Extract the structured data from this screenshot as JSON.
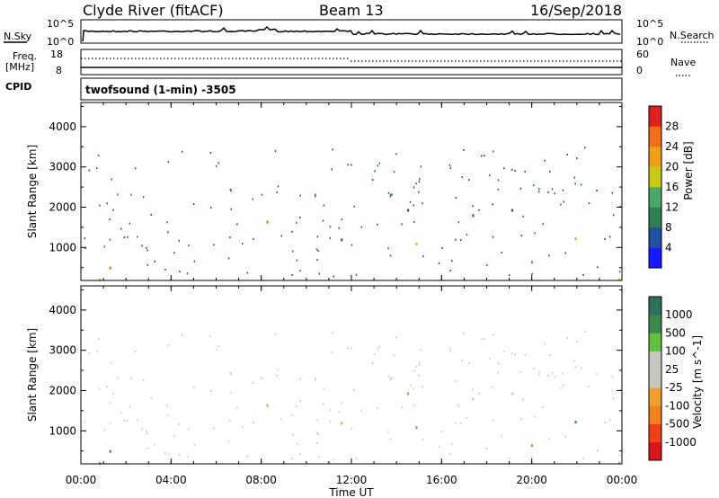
{
  "header": {
    "station": "Clyde River (fitACF)",
    "beam": "Beam 13",
    "date": "16/Sep/2018"
  },
  "top_panels": {
    "nsky_label": "N.Sky",
    "nsearch_label": "N.Search",
    "nsky_ticks": [
      "10^5",
      "10^0"
    ],
    "nsearch_ticks": [
      "10^5",
      "10^0"
    ],
    "freq_label_1": "Freq.",
    "freq_label_2": "[MHz]",
    "freq_ticks": [
      "18",
      "8"
    ],
    "nave_label": "Nave",
    "nave_ticks": [
      "60",
      "0"
    ],
    "cpid_label": "CPID",
    "cpid_text": "twofsound (1-min) -3505"
  },
  "colors": {
    "power": [
      "#1818ff",
      "#2050a0",
      "#2f7f55",
      "#48a868",
      "#c8c818",
      "#f0a018",
      "#f07018",
      "#e02020"
    ],
    "velocity": [
      "#d81818",
      "#f04018",
      "#f08020",
      "#f0a030",
      "#c8c8c0",
      "#c8c8c0",
      "#60c040",
      "#3a8a50",
      "#2f6e60",
      "#2030c0"
    ]
  },
  "chart_data": [
    {
      "type": "heatmap",
      "ylabel": "Slant Range [km]",
      "ylim": [
        180,
        4600
      ],
      "x_ticks": [
        "00:00",
        "04:00",
        "08:00",
        "12:00",
        "16:00",
        "20:00",
        "00:00"
      ],
      "y_ticks": [
        1000,
        2000,
        3000,
        4000
      ],
      "colorbar": {
        "label": "Power [dB]",
        "ticks": [
          "4",
          "8",
          "12",
          "16",
          "20",
          "24",
          "28"
        ]
      }
    },
    {
      "type": "heatmap",
      "xlabel": "Time UT",
      "ylabel": "Slant Range [km]",
      "ylim": [
        180,
        4600
      ],
      "x_ticks": [
        "00:00",
        "04:00",
        "08:00",
        "12:00",
        "16:00",
        "20:00",
        "00:00"
      ],
      "y_ticks": [
        1000,
        2000,
        3000,
        4000
      ],
      "colorbar": {
        "label": "Velocity [m s^-1]",
        "ticks": [
          "1000",
          "500",
          "100",
          "25",
          "-25",
          "-100",
          "-500",
          "-1000"
        ]
      }
    }
  ]
}
